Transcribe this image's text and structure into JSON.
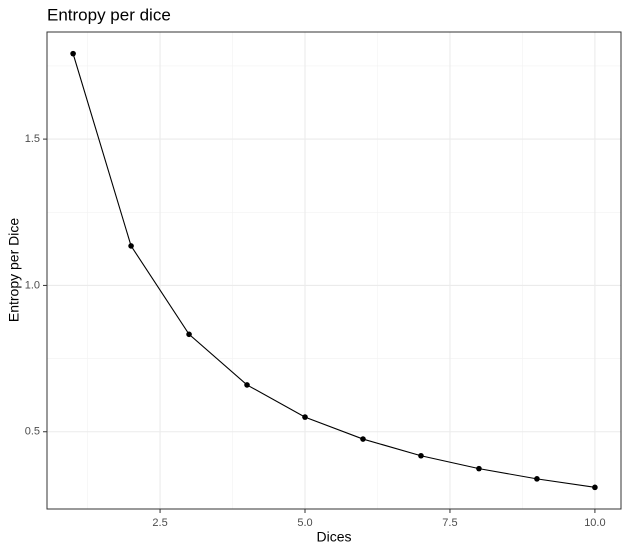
{
  "chart_data": {
    "type": "line",
    "title": "Entropy per dice",
    "x_label": "Dices",
    "y_label": "Entropy per Dice",
    "x": [
      1,
      2,
      3,
      4,
      5,
      6,
      7,
      8,
      9,
      10
    ],
    "values": [
      1.792,
      1.135,
      0.833,
      0.66,
      0.55,
      0.475,
      0.418,
      0.374,
      0.339,
      0.31
    ],
    "color": "#000000",
    "xlim": [
      0.55,
      10.45
    ],
    "ylim": [
      0.236,
      1.866
    ],
    "xticks": [
      2.5,
      {
        "value": 5,
        "label": "5.0"
      },
      7.5,
      {
        "value": 10,
        "label": "10.0"
      }
    ],
    "yticks": [
      0.5,
      {
        "value": 1,
        "label": "1.0"
      },
      1.5
    ],
    "minor_xticks": [
      1.25,
      3.75,
      6.25,
      8.75
    ],
    "minor_yticks": [
      0.75,
      1.25,
      1.75
    ],
    "grid": true
  }
}
